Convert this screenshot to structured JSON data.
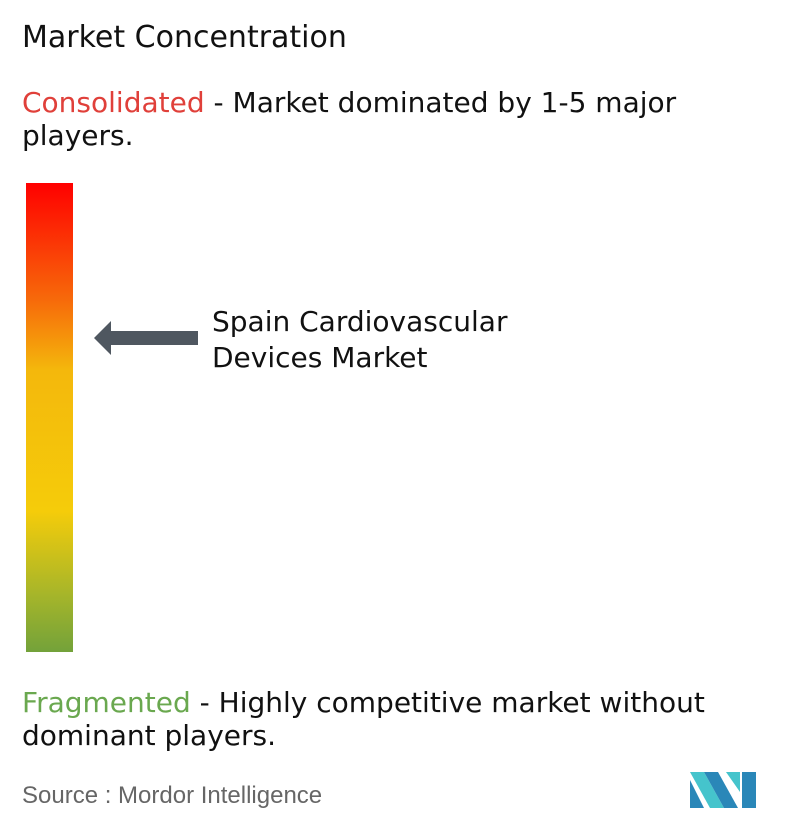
{
  "title": "Market Concentration",
  "consolidated": {
    "label": "Consolidated",
    "description": " - Market dominated by 1-5 major players.",
    "color": "#e0403a"
  },
  "fragmented": {
    "label": "Fragmented",
    "description": " - Highly competitive market without dominant players.",
    "color": "#6aa84f"
  },
  "gauge": {
    "market_label_line1": "Spain Cardiovascular",
    "market_label_line2": "Devices Market",
    "concentration_level": 0.67,
    "arrow_color": "#4f5760",
    "gradient_colors": [
      "#ff0000",
      "#f76a0a",
      "#f5cc0a",
      "#73a23a"
    ]
  },
  "source": "Source :  Mordor Intelligence",
  "logo": {
    "text": "MI",
    "colors": [
      "#2a87b8",
      "#45c4cc"
    ]
  }
}
